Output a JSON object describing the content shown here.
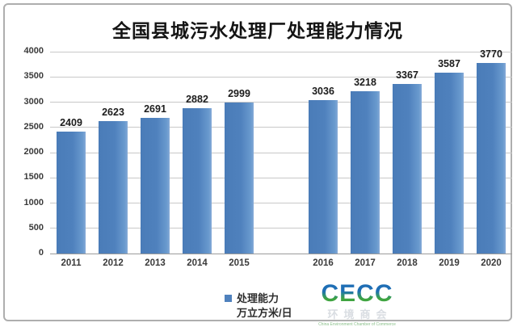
{
  "title": "全国县城污水处理厂处理能力情况",
  "chart_data": {
    "type": "bar",
    "categories": [
      "2011",
      "2012",
      "2013",
      "2014",
      "2015",
      "2016",
      "2017",
      "2018",
      "2019",
      "2020"
    ],
    "values": [
      2409,
      2623,
      2691,
      2882,
      2999,
      3036,
      3218,
      3367,
      3587,
      3770
    ],
    "title": "全国县城污水处理厂处理能力情况",
    "xlabel": "",
    "ylabel": "",
    "ylim": [
      0,
      4000
    ],
    "ytick_step": 500,
    "grid": true,
    "gap_after_category": "2015",
    "bar_color": "#4F81BD",
    "legend_entries": [
      "处理能力 万立方米/日"
    ],
    "legend_position": "bottom-center",
    "data_labels": true
  },
  "legend": {
    "line1": "处理能力",
    "line2": "万立方米/日",
    "marker_color": "#4F81BD"
  },
  "logo": {
    "acronym": "CECC",
    "name_cn": "环境商会",
    "tagline_en": "China Environment Chamber of Commerce",
    "color_top": "#1E6EB5",
    "color_bottom": "#3FA440"
  },
  "colors": {
    "bar": "#4F81BD",
    "gridline": "#C8C8C8",
    "axis_line": "#9B9B9B",
    "label_text": "#3A3A3A",
    "panel_border": "#AEAEAE",
    "background": "#FFFFFF"
  }
}
